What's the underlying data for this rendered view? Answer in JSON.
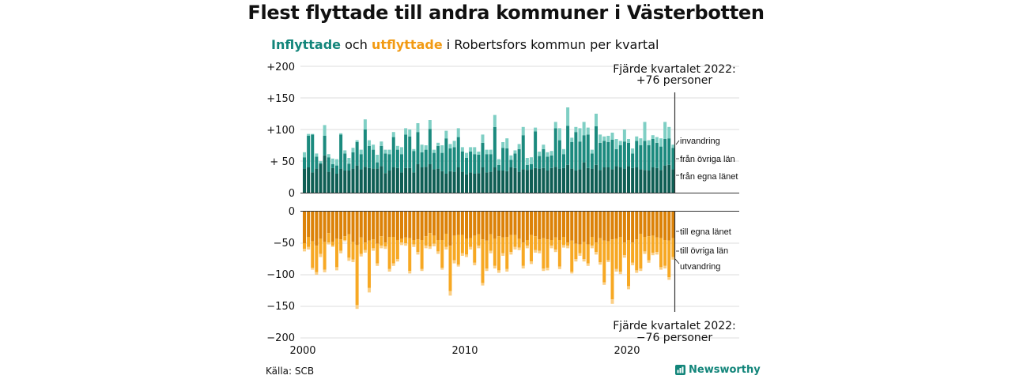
{
  "title": "Flest flyttade till andra kommuner i Västerbotten",
  "subtitle": {
    "inflow_word": "Inflyttade",
    "and_word": "och",
    "outflow_word": "utflyttade",
    "rest": "i Robertsfors kommun per kvartal"
  },
  "source": "Källa: SCB",
  "brand": "Newsworthy",
  "colors": {
    "in_county": "#0f5e54",
    "in_other": "#1b8a7e",
    "in_emig": "#7fcfc4",
    "out_county": "#dc8208",
    "out_other": "#f7a823",
    "out_emig": "#fbcf85"
  },
  "chart_data": {
    "type": "bar",
    "stacked": true,
    "x_ticks": [
      "2000",
      "2010",
      "2020"
    ],
    "top_y_ticks": [
      "+200",
      "+150",
      "+100",
      "+ 50",
      "0"
    ],
    "bottom_y_ticks": [
      "0",
      "−50",
      "−100",
      "−150",
      "−200"
    ],
    "top_ylim": [
      0,
      200
    ],
    "bottom_ylim": [
      -200,
      0
    ],
    "grid": true,
    "series_labels": {
      "in_emig": "invandring",
      "in_other": "från övriga län",
      "in_county": "från egna länet",
      "out_county": "till egna länet",
      "out_other": "till övriga län",
      "out_emig": "utvandring"
    },
    "annotation_top": [
      "Fjärde kvartalet 2022:",
      "+76 personer"
    ],
    "annotation_bottom": [
      "Fjärde kvartalet 2022:",
      "−76 personer"
    ],
    "start_year": 2000,
    "quarters_per_year": 4,
    "n_quarters": 92,
    "inflow_total": [
      64,
      93,
      93,
      62,
      50,
      107,
      61,
      54,
      53,
      94,
      67,
      55,
      71,
      83,
      68,
      116,
      83,
      76,
      60,
      81,
      68,
      68,
      96,
      74,
      72,
      102,
      100,
      69,
      110,
      76,
      75,
      115,
      68,
      79,
      75,
      98,
      77,
      82,
      102,
      72,
      63,
      72,
      72,
      65,
      92,
      68,
      68,
      123,
      53,
      80,
      86,
      59,
      67,
      77,
      104,
      55,
      56,
      103,
      65,
      76,
      64,
      66,
      112,
      102,
      69,
      135,
      87,
      104,
      102,
      112,
      103,
      68,
      125,
      92,
      89,
      90,
      95,
      85,
      82,
      100,
      85,
      70,
      89,
      86,
      112,
      83,
      91,
      88,
      86,
      112,
      104,
      76
    ],
    "inflow_county": [
      38,
      40,
      32,
      38,
      45,
      59,
      33,
      39,
      30,
      38,
      35,
      35,
      38,
      43,
      37,
      41,
      39,
      38,
      38,
      42,
      31,
      35,
      40,
      39,
      32,
      39,
      39,
      32,
      45,
      40,
      41,
      45,
      37,
      38,
      34,
      30,
      34,
      33,
      40,
      33,
      29,
      32,
      30,
      31,
      40,
      32,
      33,
      40,
      35,
      35,
      34,
      40,
      39,
      33,
      37,
      36,
      37,
      39,
      38,
      39,
      35,
      39,
      41,
      38,
      39,
      44,
      38,
      35,
      37,
      48,
      39,
      38,
      44,
      36,
      40,
      40,
      37,
      42,
      40,
      38,
      42,
      39,
      40,
      37,
      36,
      35,
      40,
      39,
      36,
      43,
      44,
      37
    ],
    "inflow_other": [
      18,
      50,
      60,
      19,
      2,
      31,
      23,
      6,
      13,
      54,
      27,
      11,
      26,
      37,
      24,
      59,
      35,
      30,
      10,
      32,
      31,
      26,
      48,
      29,
      29,
      53,
      50,
      34,
      51,
      24,
      27,
      56,
      26,
      36,
      29,
      56,
      36,
      39,
      48,
      32,
      26,
      33,
      31,
      29,
      39,
      29,
      28,
      64,
      9,
      36,
      36,
      12,
      23,
      36,
      54,
      8,
      8,
      58,
      20,
      30,
      22,
      20,
      61,
      45,
      22,
      62,
      42,
      61,
      44,
      43,
      53,
      24,
      61,
      43,
      42,
      40,
      47,
      27,
      35,
      43,
      37,
      23,
      42,
      38,
      46,
      40,
      45,
      40,
      37,
      42,
      42,
      34
    ],
    "outflow_total": [
      -63,
      -60,
      -92,
      -100,
      -72,
      -96,
      -52,
      -56,
      -93,
      -66,
      -47,
      -78,
      -80,
      -154,
      -71,
      -65,
      -128,
      -62,
      -86,
      -58,
      -59,
      -95,
      -86,
      -79,
      -53,
      -54,
      -98,
      -56,
      -68,
      -94,
      -58,
      -59,
      -55,
      -67,
      -92,
      -60,
      -133,
      -82,
      -87,
      -70,
      -72,
      -60,
      -85,
      -58,
      -117,
      -94,
      -66,
      -90,
      -97,
      -70,
      -95,
      -68,
      -60,
      -61,
      -90,
      -58,
      -83,
      -65,
      -66,
      -94,
      -93,
      -58,
      -64,
      -91,
      -57,
      -58,
      -98,
      -79,
      -70,
      -79,
      -86,
      -58,
      -68,
      -84,
      -116,
      -80,
      -146,
      -95,
      -99,
      -73,
      -123,
      -85,
      -97,
      -94,
      -67,
      -81,
      -69,
      -68,
      -92,
      -90,
      -108,
      -76
    ],
    "outflow_county": [
      -50,
      -40,
      -47,
      -54,
      -43,
      -48,
      -34,
      -48,
      -43,
      -44,
      -39,
      -36,
      -48,
      -53,
      -41,
      -49,
      -46,
      -44,
      -51,
      -39,
      -49,
      -40,
      -40,
      -45,
      -43,
      -41,
      -42,
      -45,
      -44,
      -45,
      -39,
      -34,
      -38,
      -45,
      -45,
      -35,
      -54,
      -38,
      -37,
      -37,
      -43,
      -42,
      -38,
      -36,
      -44,
      -46,
      -36,
      -43,
      -39,
      -41,
      -40,
      -37,
      -37,
      -43,
      -49,
      -45,
      -37,
      -39,
      -44,
      -42,
      -44,
      -45,
      -41,
      -45,
      -40,
      -49,
      -46,
      -51,
      -52,
      -48,
      -52,
      -40,
      -49,
      -42,
      -46,
      -47,
      -44,
      -43,
      -40,
      -49,
      -45,
      -49,
      -44,
      -35,
      -40,
      -39,
      -38,
      -41,
      -42,
      -45,
      -46,
      -42
    ],
    "outflow_other": [
      -9,
      -16,
      -42,
      -42,
      -24,
      -44,
      -15,
      -6,
      -45,
      -18,
      -6,
      -37,
      -28,
      -95,
      -26,
      -12,
      -75,
      -14,
      -31,
      -15,
      -6,
      -51,
      -42,
      -30,
      -6,
      -9,
      -52,
      -7,
      -20,
      -46,
      -15,
      -21,
      -13,
      -18,
      -44,
      -21,
      -72,
      -39,
      -47,
      -29,
      -25,
      -14,
      -43,
      -18,
      -69,
      -44,
      -26,
      -43,
      -54,
      -25,
      -51,
      -27,
      -19,
      -14,
      -37,
      -9,
      -42,
      -22,
      -18,
      -48,
      -45,
      -9,
      -19,
      -42,
      -13,
      -5,
      -49,
      -24,
      -14,
      -27,
      -30,
      -14,
      -15,
      -38,
      -66,
      -30,
      -95,
      -48,
      -55,
      -20,
      -73,
      -32,
      -49,
      -55,
      -23,
      -38,
      -27,
      -23,
      -46,
      -41,
      -58,
      -30
    ]
  }
}
